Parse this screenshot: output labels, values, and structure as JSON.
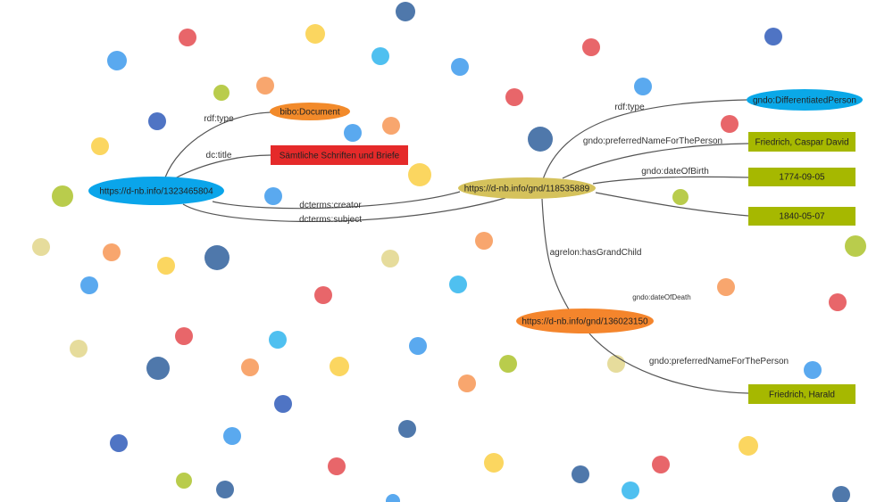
{
  "colors": {
    "resource_blue": "#0aa5ea",
    "resource_gold": "#d5c25c",
    "resource_orange": "#f4852c",
    "type_orange": "#f28a2a",
    "title_red": "#e52a2a",
    "literal_olive": "#a6b800"
  },
  "nodes": {
    "doc": "https://d-nb.info/1323465804",
    "doc_type": "bibo:Document",
    "doc_title": "Sämtliche Schriften und Briefe",
    "person": "https://d-nb.info/gnd/118535889",
    "person_type": "gndo:DifferentiatedPerson",
    "person_name": "Friedrich, Caspar David",
    "person_birth": "1774-09-05",
    "person_death": "1840-05-07",
    "grandchild": "https://d-nb.info/gnd/136023150",
    "grandchild_name": "Friedrich, Harald"
  },
  "edges": {
    "doc_type": "rdf:type",
    "doc_title": "dc:title",
    "creator": "dcterms:creator",
    "subject": "dcterms:subject",
    "person_type": "rdf:type",
    "person_name": "gndo:preferredNameForThePerson",
    "person_birth": "gndo:dateOfBirth",
    "person_death": "gndo:dateOfDeath",
    "grandchild": "agrelon:hasGrandChild",
    "grandchild_name": "gndo:preferredNameForThePerson"
  }
}
